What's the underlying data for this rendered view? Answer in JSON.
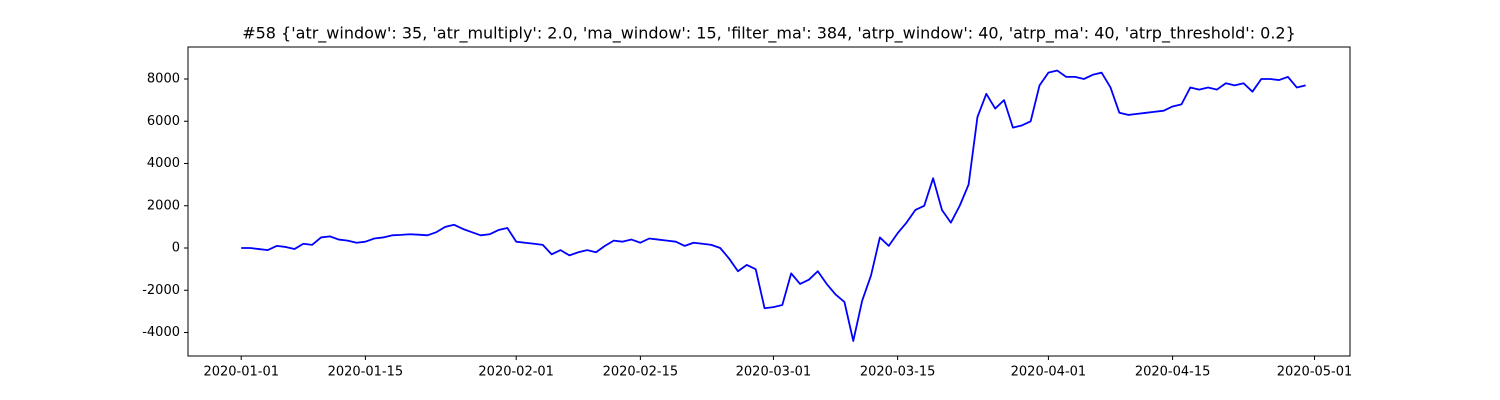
{
  "chart_data": {
    "type": "line",
    "title": "#58 {'atr_window': 35, 'atr_multiply': 2.0, 'ma_window': 15, 'filter_ma': 384, 'atrp_window': 40, 'atrp_ma': 40, 'atrp_threshold': 0.2}",
    "x": [
      "2020-01-01",
      "2020-01-02",
      "2020-01-03",
      "2020-01-04",
      "2020-01-05",
      "2020-01-06",
      "2020-01-07",
      "2020-01-08",
      "2020-01-09",
      "2020-01-10",
      "2020-01-11",
      "2020-01-12",
      "2020-01-13",
      "2020-01-14",
      "2020-01-15",
      "2020-01-16",
      "2020-01-17",
      "2020-01-18",
      "2020-01-19",
      "2020-01-20",
      "2020-01-21",
      "2020-01-22",
      "2020-01-23",
      "2020-01-24",
      "2020-01-25",
      "2020-01-26",
      "2020-01-27",
      "2020-01-28",
      "2020-01-29",
      "2020-01-30",
      "2020-01-31",
      "2020-02-01",
      "2020-02-02",
      "2020-02-03",
      "2020-02-04",
      "2020-02-05",
      "2020-02-06",
      "2020-02-07",
      "2020-02-08",
      "2020-02-09",
      "2020-02-10",
      "2020-02-11",
      "2020-02-12",
      "2020-02-13",
      "2020-02-14",
      "2020-02-15",
      "2020-02-16",
      "2020-02-17",
      "2020-02-18",
      "2020-02-19",
      "2020-02-20",
      "2020-02-21",
      "2020-02-22",
      "2020-02-23",
      "2020-02-24",
      "2020-02-25",
      "2020-02-26",
      "2020-02-27",
      "2020-02-28",
      "2020-02-29",
      "2020-03-01",
      "2020-03-02",
      "2020-03-03",
      "2020-03-04",
      "2020-03-05",
      "2020-03-06",
      "2020-03-07",
      "2020-03-08",
      "2020-03-09",
      "2020-03-10",
      "2020-03-11",
      "2020-03-12",
      "2020-03-13",
      "2020-03-14",
      "2020-03-15",
      "2020-03-16",
      "2020-03-17",
      "2020-03-18",
      "2020-03-19",
      "2020-03-20",
      "2020-03-21",
      "2020-03-22",
      "2020-03-23",
      "2020-03-24",
      "2020-03-25",
      "2020-03-26",
      "2020-03-27",
      "2020-03-28",
      "2020-03-29",
      "2020-03-30",
      "2020-03-31",
      "2020-04-01",
      "2020-04-02",
      "2020-04-03",
      "2020-04-04",
      "2020-04-05",
      "2020-04-06",
      "2020-04-07",
      "2020-04-08",
      "2020-04-09",
      "2020-04-10",
      "2020-04-11",
      "2020-04-12",
      "2020-04-13",
      "2020-04-14",
      "2020-04-15",
      "2020-04-16",
      "2020-04-17",
      "2020-04-18",
      "2020-04-19",
      "2020-04-20",
      "2020-04-21",
      "2020-04-22",
      "2020-04-23",
      "2020-04-24",
      "2020-04-25",
      "2020-04-26",
      "2020-04-27",
      "2020-04-28",
      "2020-04-29",
      "2020-04-30"
    ],
    "values": [
      0,
      0,
      -50,
      -100,
      100,
      50,
      -50,
      200,
      150,
      500,
      550,
      400,
      350,
      250,
      300,
      450,
      500,
      600,
      620,
      650,
      630,
      600,
      750,
      1000,
      1100,
      900,
      750,
      600,
      650,
      850,
      950,
      300,
      250,
      200,
      150,
      -300,
      -100,
      -350,
      -200,
      -100,
      -200,
      100,
      350,
      300,
      400,
      250,
      450,
      400,
      350,
      300,
      100,
      250,
      200,
      150,
      0,
      -500,
      -1100,
      -800,
      -1000,
      -2850,
      -2800,
      -2700,
      -1200,
      -1700,
      -1500,
      -1100,
      -1700,
      -2200,
      -2550,
      -4400,
      -2500,
      -1300,
      500,
      100,
      700,
      1200,
      1800,
      2000,
      3300,
      1800,
      1200,
      2000,
      3000,
      6200,
      7300,
      6600,
      7000,
      5700,
      5800,
      6000,
      7700,
      8300,
      8400,
      8100,
      8100,
      8000,
      8200,
      8300,
      7600,
      6400,
      6300,
      6350,
      6400,
      6450,
      6500,
      6700,
      6800,
      7600,
      7500,
      7600,
      7500,
      7800,
      7700,
      7800,
      7400,
      8000,
      8000,
      7950,
      8100,
      7600,
      7700
    ],
    "color": "#0000ff",
    "xlim": [
      "2019-12-26",
      "2020-05-05"
    ],
    "xticks": [
      "2020-01-01",
      "2020-01-15",
      "2020-02-01",
      "2020-02-15",
      "2020-03-01",
      "2020-03-15",
      "2020-04-01",
      "2020-04-15",
      "2020-05-01"
    ],
    "ylim": [
      -5112,
      9515
    ],
    "yticks": [
      -4000,
      -2000,
      0,
      2000,
      4000,
      6000,
      8000
    ],
    "grid": false
  }
}
